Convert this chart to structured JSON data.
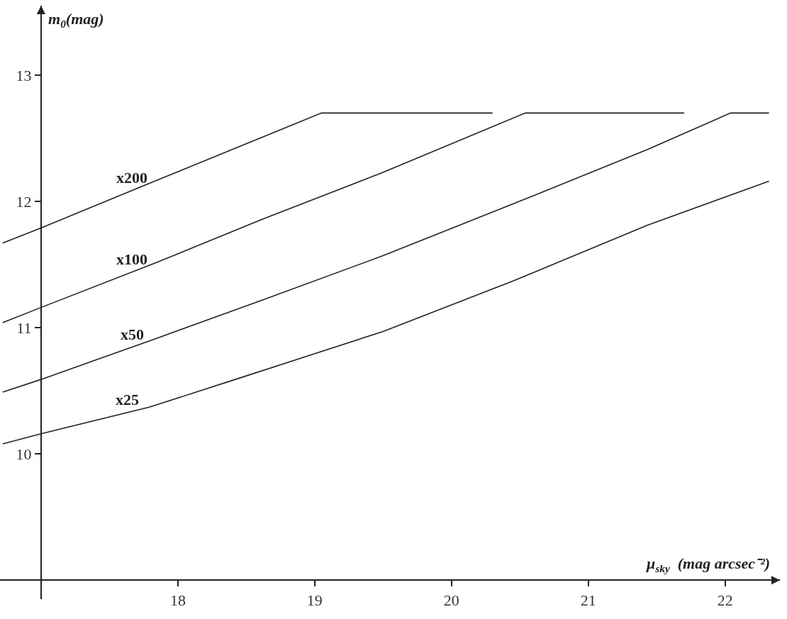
{
  "chart_data": {
    "type": "line",
    "xlabel": "μ$_{sky}$  (mag arcsec⁻²)",
    "ylabel": "m$_{0}$(mag)",
    "xlim": [
      16.7,
      22.4
    ],
    "ylim": [
      8.85,
      13.55
    ],
    "xticks": [
      18,
      19,
      20,
      21,
      22
    ],
    "yticks": [
      10,
      11,
      12,
      13
    ],
    "marker": "none",
    "line_style": "solid",
    "series": [
      {
        "name": "x200",
        "color": "#222222",
        "x": [
          16.72,
          17.0,
          17.83,
          18.62,
          19.05,
          20.3
        ],
        "values": [
          11.67,
          11.79,
          12.16,
          12.51,
          12.7,
          12.7
        ]
      },
      {
        "name": "x100",
        "color": "#222222",
        "x": [
          16.72,
          17.0,
          17.83,
          18.62,
          19.5,
          20.54,
          21.7
        ],
        "values": [
          11.04,
          11.16,
          11.51,
          11.86,
          12.23,
          12.7,
          12.7
        ]
      },
      {
        "name": "x50",
        "color": "#222222",
        "x": [
          16.72,
          17.0,
          17.83,
          18.62,
          19.5,
          20.45,
          21.43,
          22.04,
          22.32
        ],
        "values": [
          10.49,
          10.59,
          10.91,
          11.22,
          11.57,
          11.98,
          12.41,
          12.7,
          12.7
        ]
      },
      {
        "name": "x25",
        "color": "#222222",
        "x": [
          16.72,
          17.0,
          17.79,
          18.42,
          19.5,
          20.45,
          21.43,
          22.32
        ],
        "values": [
          10.08,
          10.16,
          10.37,
          10.59,
          10.97,
          11.37,
          11.81,
          12.16
        ]
      }
    ]
  }
}
